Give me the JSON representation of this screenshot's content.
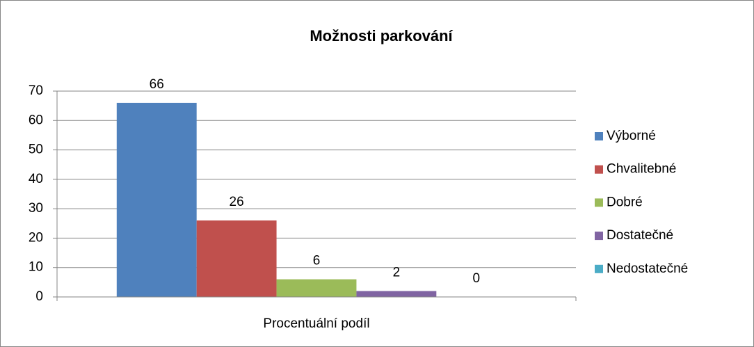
{
  "chart_data": {
    "type": "bar",
    "title": "Možnosti parkování",
    "categories": [
      "Procentuální podíl"
    ],
    "series": [
      {
        "name": "Výborné",
        "color": "#4f81bd",
        "values": [
          66
        ]
      },
      {
        "name": "Chvalitebné",
        "color": "#c0504d",
        "values": [
          26
        ]
      },
      {
        "name": "Dobré",
        "color": "#9bbb59",
        "values": [
          6
        ]
      },
      {
        "name": "Dostatečné",
        "color": "#8064a2",
        "values": [
          2
        ]
      },
      {
        "name": "Nedostatečné",
        "color": "#4bacc6",
        "values": [
          0
        ]
      }
    ],
    "ylim": [
      0,
      70
    ],
    "yticks": [
      0,
      10,
      20,
      30,
      40,
      50,
      60,
      70
    ],
    "grid": true,
    "legend": "right"
  }
}
